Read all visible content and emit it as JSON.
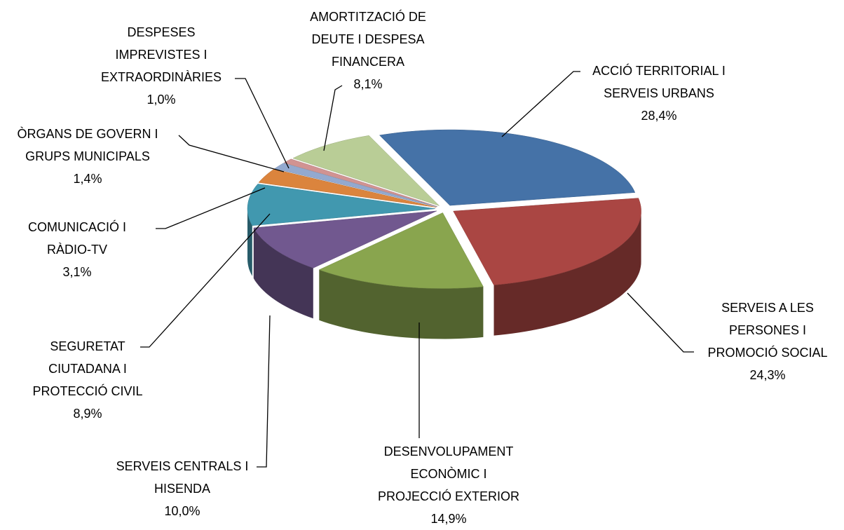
{
  "chart_data": {
    "type": "pie3d",
    "categories": [
      [
        "ACCIÓ TERRITORIAL I",
        "SERVEIS URBANS"
      ],
      [
        "SERVEIS A LES",
        "PERSONES I",
        "PROMOCIÓ SOCIAL"
      ],
      [
        "DESENVOLUPAMENT",
        "ECONÒMIC I",
        "PROJECCIÓ EXTERIOR"
      ],
      [
        "SERVEIS CENTRALS I",
        "HISENDA"
      ],
      [
        "SEGURETAT",
        "CIUTADANA I",
        "PROTECCIÓ CIVIL"
      ],
      [
        "COMUNICACIÓ I",
        "RÀDIO-TV"
      ],
      [
        "ÒRGANS DE GOVERN I",
        "GRUPS MUNICIPALS"
      ],
      [
        "DESPESES",
        "IMPREVISTES I",
        "EXTRAORDINÀRIES"
      ],
      [
        "AMORTITZACIÓ DE",
        "DEUTE I DESPESA",
        "FINANCERA"
      ]
    ],
    "values": [
      28.4,
      24.3,
      14.9,
      10.0,
      8.9,
      3.1,
      1.4,
      1.0,
      8.1
    ],
    "value_labels": [
      "28,4%",
      "24,3%",
      "14,9%",
      "10,0%",
      "8,9%",
      "3,1%",
      "1,4%",
      "1,0%",
      "8,1%"
    ],
    "colors": [
      "#4572a7",
      "#aa4643",
      "#89a54e",
      "#71588f",
      "#4198af",
      "#db843d",
      "#93a9cf",
      "#d19392",
      "#b9cd96"
    ]
  }
}
